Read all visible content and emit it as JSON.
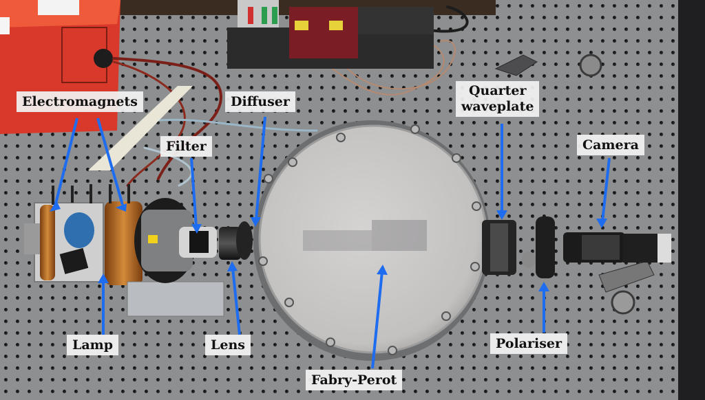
{
  "photo": {
    "annotation_color": "#1e6cf0",
    "labels": {
      "electromagnets": "Electromagnets",
      "diffuser": "Diffuser",
      "filter": "Filter",
      "quarter_waveplate_line1": "Quarter",
      "quarter_waveplate_line2": "waveplate",
      "camera": "Camera",
      "lamp": "Lamp",
      "lens": "Lens",
      "fabry_perot": "Fabry-Perot",
      "polariser": "Polariser"
    }
  }
}
